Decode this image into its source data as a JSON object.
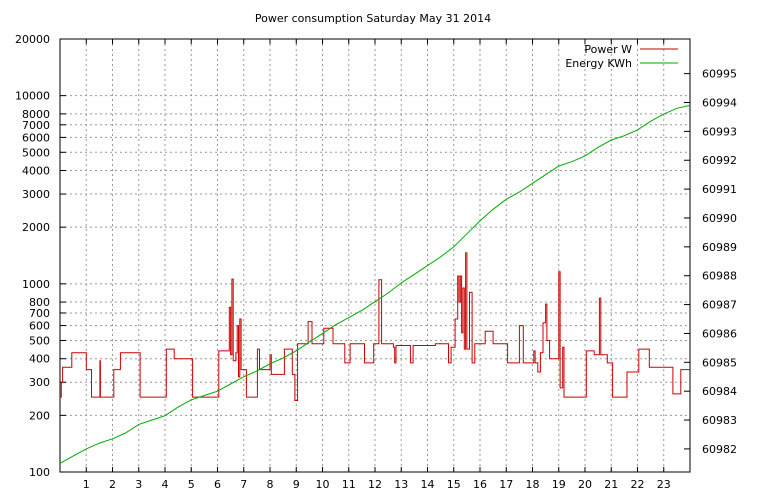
{
  "chart_data": {
    "type": "line",
    "title": "Power consumption Saturday May 31 2014",
    "legend": {
      "placement": "top-right",
      "entries": [
        {
          "label": "Power W",
          "color": "#cc0000"
        },
        {
          "label": "Energy KWh",
          "color": "#00aa00"
        }
      ]
    },
    "grid": true,
    "x": {
      "label": "",
      "range": [
        0,
        24
      ],
      "ticks": [
        1,
        2,
        3,
        4,
        5,
        6,
        7,
        8,
        9,
        10,
        11,
        12,
        13,
        14,
        15,
        16,
        17,
        18,
        19,
        20,
        21,
        22,
        23
      ],
      "tick_labels": [
        "1",
        "2",
        "3",
        "4",
        "5",
        "6",
        "7",
        "8",
        "9",
        "10",
        "11",
        "12",
        "13",
        "14",
        "15",
        "16",
        "17",
        "18",
        "19",
        "20",
        "21",
        "22",
        "23"
      ]
    },
    "y_left": {
      "label": "",
      "scale": "log",
      "range": [
        100,
        20000
      ],
      "ticks": [
        100,
        200,
        300,
        400,
        500,
        600,
        700,
        800,
        1000,
        2000,
        3000,
        4000,
        5000,
        6000,
        7000,
        8000,
        10000,
        20000
      ],
      "tick_labels": [
        "100",
        "200",
        "300",
        "400",
        "500",
        "600",
        "700",
        "800",
        "1000",
        "2000",
        "3000",
        "4000",
        "5000",
        "6000",
        "7000",
        "8000",
        "10000",
        "20000"
      ]
    },
    "y_right": {
      "label": "",
      "scale": "linear",
      "range": [
        60981.2,
        60996.2
      ],
      "ticks": [
        60982,
        60983,
        60984,
        60985,
        60986,
        60987,
        60988,
        60989,
        60990,
        60991,
        60992,
        60993,
        60994,
        60995
      ],
      "tick_labels": [
        "60982",
        "60983",
        "60984",
        "60985",
        "60986",
        "60987",
        "60988",
        "60989",
        "60990",
        "60991",
        "60992",
        "60993",
        "60994",
        "60995"
      ]
    },
    "series": [
      {
        "name": "Power W",
        "color": "#cc0000",
        "axis": "left",
        "step": true,
        "points": [
          [
            0,
            250
          ],
          [
            0.05,
            300
          ],
          [
            0.1,
            360
          ],
          [
            0.45,
            430
          ],
          [
            1,
            350
          ],
          [
            1.2,
            250
          ],
          [
            1.5,
            250
          ],
          [
            1.52,
            390
          ],
          [
            1.54,
            250
          ],
          [
            1.95,
            250
          ],
          [
            2.05,
            350
          ],
          [
            2.3,
            430
          ],
          [
            2.95,
            430
          ],
          [
            3.05,
            250
          ],
          [
            3.95,
            250
          ],
          [
            4.05,
            450
          ],
          [
            4.35,
            400
          ],
          [
            4.85,
            400
          ],
          [
            5.05,
            250
          ],
          [
            5.95,
            250
          ],
          [
            6.05,
            440
          ],
          [
            6.4,
            440
          ],
          [
            6.45,
            750
          ],
          [
            6.5,
            420
          ],
          [
            6.55,
            1060
          ],
          [
            6.6,
            390
          ],
          [
            6.7,
            430
          ],
          [
            6.75,
            600
          ],
          [
            6.8,
            320
          ],
          [
            6.85,
            650
          ],
          [
            6.9,
            350
          ],
          [
            7.1,
            250
          ],
          [
            7.5,
            250
          ],
          [
            7.52,
            450
          ],
          [
            7.6,
            350
          ],
          [
            8.0,
            420
          ],
          [
            8.05,
            330
          ],
          [
            8.35,
            330
          ],
          [
            8.55,
            450
          ],
          [
            8.85,
            330
          ],
          [
            8.95,
            240
          ],
          [
            9.05,
            480
          ],
          [
            9.35,
            480
          ],
          [
            9.45,
            630
          ],
          [
            9.6,
            480
          ],
          [
            10.05,
            580
          ],
          [
            10.4,
            480
          ],
          [
            10.85,
            380
          ],
          [
            11.05,
            480
          ],
          [
            11.6,
            380
          ],
          [
            11.95,
            480
          ],
          [
            12.15,
            1050
          ],
          [
            12.25,
            480
          ],
          [
            12.7,
            460
          ],
          [
            12.75,
            380
          ],
          [
            12.8,
            470
          ],
          [
            13.3,
            470
          ],
          [
            13.35,
            380
          ],
          [
            13.45,
            470
          ],
          [
            14.2,
            470
          ],
          [
            14.3,
            480
          ],
          [
            14.7,
            480
          ],
          [
            14.8,
            380
          ],
          [
            14.9,
            460
          ],
          [
            15.05,
            650
          ],
          [
            15.15,
            1100
          ],
          [
            15.2,
            800
          ],
          [
            15.25,
            1100
          ],
          [
            15.3,
            550
          ],
          [
            15.35,
            950
          ],
          [
            15.4,
            450
          ],
          [
            15.45,
            1460
          ],
          [
            15.5,
            450
          ],
          [
            15.6,
            900
          ],
          [
            15.7,
            380
          ],
          [
            15.8,
            480
          ],
          [
            16.1,
            480
          ],
          [
            16.2,
            560
          ],
          [
            16.5,
            480
          ],
          [
            16.9,
            480
          ],
          [
            17.05,
            380
          ],
          [
            17.45,
            380
          ],
          [
            17.5,
            600
          ],
          [
            17.65,
            380
          ],
          [
            17.8,
            380
          ],
          [
            18.05,
            440
          ],
          [
            18.1,
            380
          ],
          [
            18.2,
            340
          ],
          [
            18.3,
            430
          ],
          [
            18.4,
            620
          ],
          [
            18.5,
            780
          ],
          [
            18.55,
            500
          ],
          [
            18.65,
            400
          ],
          [
            18.75,
            400
          ],
          [
            18.9,
            400
          ],
          [
            19.0,
            1160
          ],
          [
            19.05,
            280
          ],
          [
            19.15,
            460
          ],
          [
            19.2,
            250
          ],
          [
            19.95,
            250
          ],
          [
            20.05,
            440
          ],
          [
            20.35,
            420
          ],
          [
            20.5,
            420
          ],
          [
            20.55,
            840
          ],
          [
            20.6,
            420
          ],
          [
            20.85,
            380
          ],
          [
            21.05,
            250
          ],
          [
            21.55,
            250
          ],
          [
            21.6,
            340
          ],
          [
            21.95,
            340
          ],
          [
            22.05,
            450
          ],
          [
            22.45,
            360
          ],
          [
            22.85,
            360
          ],
          [
            23.05,
            360
          ],
          [
            23.35,
            260
          ],
          [
            23.65,
            350
          ],
          [
            23.95,
            350
          ]
        ]
      },
      {
        "name": "Energy KWh",
        "color": "#00aa00",
        "axis": "right",
        "step": false,
        "points": [
          [
            0,
            60981.5
          ],
          [
            0.5,
            60981.75
          ],
          [
            1,
            60982.0
          ],
          [
            1.5,
            60982.2
          ],
          [
            2,
            60982.35
          ],
          [
            2.5,
            60982.55
          ],
          [
            3,
            60982.85
          ],
          [
            3.5,
            60983.0
          ],
          [
            4,
            60983.15
          ],
          [
            4.5,
            60983.45
          ],
          [
            5,
            60983.7
          ],
          [
            5.5,
            60983.85
          ],
          [
            6,
            60984.0
          ],
          [
            6.5,
            60984.25
          ],
          [
            7,
            60984.5
          ],
          [
            7.5,
            60984.7
          ],
          [
            8,
            60984.95
          ],
          [
            8.5,
            60985.15
          ],
          [
            9,
            60985.4
          ],
          [
            9.5,
            60985.7
          ],
          [
            10,
            60986.0
          ],
          [
            10.5,
            60986.3
          ],
          [
            11,
            60986.55
          ],
          [
            11.5,
            60986.8
          ],
          [
            12,
            60987.1
          ],
          [
            12.5,
            60987.4
          ],
          [
            13,
            60987.75
          ],
          [
            13.5,
            60988.05
          ],
          [
            14,
            60988.35
          ],
          [
            14.5,
            60988.65
          ],
          [
            15,
            60989.0
          ],
          [
            15.5,
            60989.45
          ],
          [
            16,
            60989.9
          ],
          [
            16.5,
            60990.3
          ],
          [
            17,
            60990.65
          ],
          [
            17.5,
            60990.9
          ],
          [
            18,
            60991.2
          ],
          [
            18.5,
            60991.5
          ],
          [
            19,
            60991.8
          ],
          [
            19.5,
            60991.95
          ],
          [
            20,
            60992.15
          ],
          [
            20.5,
            60992.45
          ],
          [
            21,
            60992.7
          ],
          [
            21.5,
            60992.85
          ],
          [
            22,
            60993.05
          ],
          [
            22.5,
            60993.35
          ],
          [
            23,
            60993.6
          ],
          [
            23.5,
            60993.8
          ],
          [
            24,
            60993.9
          ]
        ]
      }
    ]
  }
}
